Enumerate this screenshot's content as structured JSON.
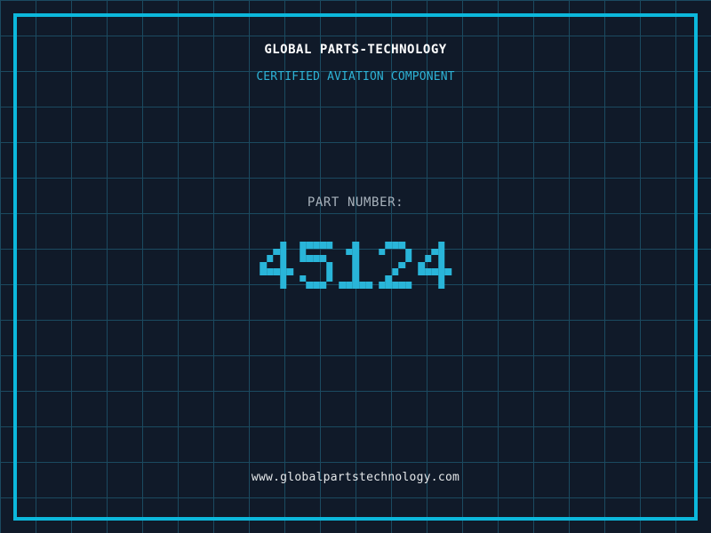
{
  "header": {
    "title": "GLOBAL PARTS-TECHNOLOGY",
    "subtitle": "CERTIFIED AVIATION COMPONENT"
  },
  "part": {
    "label": "PART NUMBER:",
    "number": "45124"
  },
  "footer": {
    "url": "www.globalpartstechnology.com"
  },
  "colors": {
    "background": "#101a29",
    "grid_line": "#1b4a60",
    "frame_cyan": "#0cb8dc",
    "accent_cyan": "#29b5d9",
    "title_white": "#ffffff",
    "label_gray": "#a8b2bc",
    "url_white": "#e4e7e9"
  }
}
